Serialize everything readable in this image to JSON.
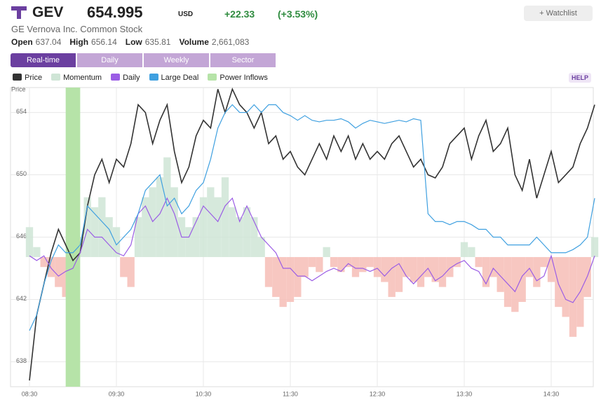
{
  "header": {
    "ticker": "GEV",
    "price": "654.995",
    "currency": "USD",
    "change": "+22.33",
    "change_pct": "(+3.53%)",
    "watchlist": "Watchlist",
    "name": "GE Vernova Inc. Common Stock",
    "stats": [
      {
        "label": "Open",
        "value": "637.04"
      },
      {
        "label": "High",
        "value": "656.14"
      },
      {
        "label": "Low",
        "value": "635.81"
      },
      {
        "label": "Volume",
        "value": "2,661,083"
      }
    ],
    "tabs": [
      "Real-time",
      "Daily",
      "Weekly",
      "Sector"
    ],
    "help": "HELP"
  },
  "chart_data": {
    "type": "line",
    "ylabel": "Price",
    "categories": [
      "08:30",
      null,
      null,
      null,
      null,
      null,
      null,
      null,
      null,
      null,
      null,
      null,
      "09:30",
      null,
      null,
      null,
      null,
      null,
      null,
      null,
      null,
      null,
      null,
      null,
      "10:30",
      null,
      null,
      null,
      null,
      null,
      null,
      null,
      null,
      null,
      null,
      null,
      "11:30",
      null,
      null,
      null,
      null,
      null,
      null,
      null,
      null,
      null,
      null,
      null,
      "12:30",
      null,
      null,
      null,
      null,
      null,
      null,
      null,
      null,
      null,
      null,
      null,
      "13:30",
      null,
      null,
      null,
      null,
      null,
      null,
      null,
      null,
      null,
      null,
      null,
      "14:30",
      null,
      null,
      null,
      null,
      null,
      null
    ],
    "ylim": [
      636.4,
      655.6
    ],
    "yticks": [
      638,
      642,
      646,
      650,
      654
    ],
    "y2lim": [
      -130,
      170
    ],
    "grid": true,
    "series": [
      {
        "name": "Price",
        "color": "#333333",
        "values": [
          636.8,
          641,
          643,
          645,
          646.5,
          645.5,
          644.5,
          645,
          648,
          650,
          651,
          649.5,
          651,
          650.5,
          652,
          654.5,
          654,
          652,
          653.5,
          654.5,
          651.5,
          649.5,
          650.5,
          652.5,
          653.5,
          653,
          655.5,
          654,
          655.5,
          654.5,
          654,
          653,
          654,
          652,
          652.5,
          651,
          651.5,
          650.5,
          650,
          651,
          652,
          651,
          652.5,
          651.5,
          652.5,
          651,
          652,
          651,
          651.5,
          651,
          652,
          652.5,
          651.5,
          650.5,
          651,
          650,
          649.8,
          650.5,
          652,
          652.5,
          653,
          651,
          652.5,
          653.5,
          651.5,
          652,
          653,
          650,
          649,
          651,
          648.5,
          650,
          651.5,
          649.5,
          650,
          650.5,
          652,
          653,
          654.5
        ]
      },
      {
        "name": "Momentum",
        "type": "bar",
        "axis": "y2",
        "color": "#cfe5d6",
        "negative_color": "#f6bdb6",
        "values": [
          30,
          10,
          -10,
          -20,
          -30,
          -40,
          -30,
          20,
          60,
          50,
          60,
          40,
          30,
          -20,
          -30,
          40,
          60,
          70,
          80,
          100,
          70,
          40,
          30,
          40,
          60,
          70,
          60,
          80,
          50,
          40,
          50,
          40,
          20,
          -30,
          -40,
          -50,
          -45,
          -40,
          -20,
          -10,
          -15,
          10,
          -10,
          -15,
          -10,
          -20,
          -15,
          -10,
          -20,
          -25,
          -40,
          -35,
          -20,
          -25,
          -30,
          -20,
          -25,
          -30,
          -20,
          -10,
          15,
          10,
          -10,
          -30,
          -20,
          -35,
          -50,
          -55,
          -45,
          -20,
          -30,
          -10,
          -25,
          -50,
          -60,
          -80,
          -70,
          -40,
          20
        ]
      },
      {
        "name": "Daily",
        "color": "#9b5de5",
        "values": [
          644.8,
          644.5,
          644.8,
          644,
          643.5,
          643.8,
          644,
          645,
          646.5,
          646,
          646,
          645.5,
          645,
          644.8,
          645.5,
          647.5,
          648,
          647,
          647.5,
          648.5,
          647.5,
          646,
          646,
          647,
          648,
          647.5,
          647,
          648,
          648.5,
          647,
          648,
          647,
          646,
          645.5,
          645,
          644,
          644,
          643.5,
          643.5,
          643.2,
          643.5,
          643.8,
          644,
          643.8,
          644.3,
          644,
          644,
          643.8,
          644,
          643.5,
          644,
          644.3,
          643.5,
          643,
          643.5,
          644,
          643.2,
          643.5,
          644,
          644.3,
          644.5,
          644,
          643.8,
          643,
          644,
          643.5,
          643,
          642.5,
          643.5,
          644,
          643.2,
          643.5,
          644.8,
          643,
          642,
          641.8,
          642.5,
          643.5,
          644.8
        ]
      },
      {
        "name": "Large Deal",
        "color": "#3fa0e0",
        "values": [
          640,
          641,
          643,
          644.5,
          645.5,
          645,
          645,
          645.5,
          648,
          647.5,
          647,
          646.5,
          645.5,
          646,
          646.5,
          647.5,
          649,
          649.5,
          650,
          648,
          648.5,
          647.5,
          648,
          649,
          649.5,
          651,
          653,
          654,
          654.5,
          654,
          654,
          654.5,
          654,
          654.5,
          654.5,
          654,
          653.8,
          653.5,
          653.8,
          653.5,
          653.4,
          653.5,
          653.5,
          653.6,
          653.4,
          653,
          653.3,
          653.5,
          653.4,
          653.3,
          653.4,
          653.5,
          653.4,
          653.6,
          653.5,
          647.5,
          647,
          647,
          646.8,
          647,
          647,
          646.8,
          646.5,
          646.5,
          646,
          646,
          645.5,
          645.5,
          645.5,
          645.5,
          646,
          645.5,
          645,
          645,
          645,
          645.2,
          645.5,
          646,
          648.5
        ]
      },
      {
        "name": "Power Inflows",
        "type": "band",
        "color": "#b6e3a8",
        "from": 5,
        "to": 7
      }
    ]
  }
}
